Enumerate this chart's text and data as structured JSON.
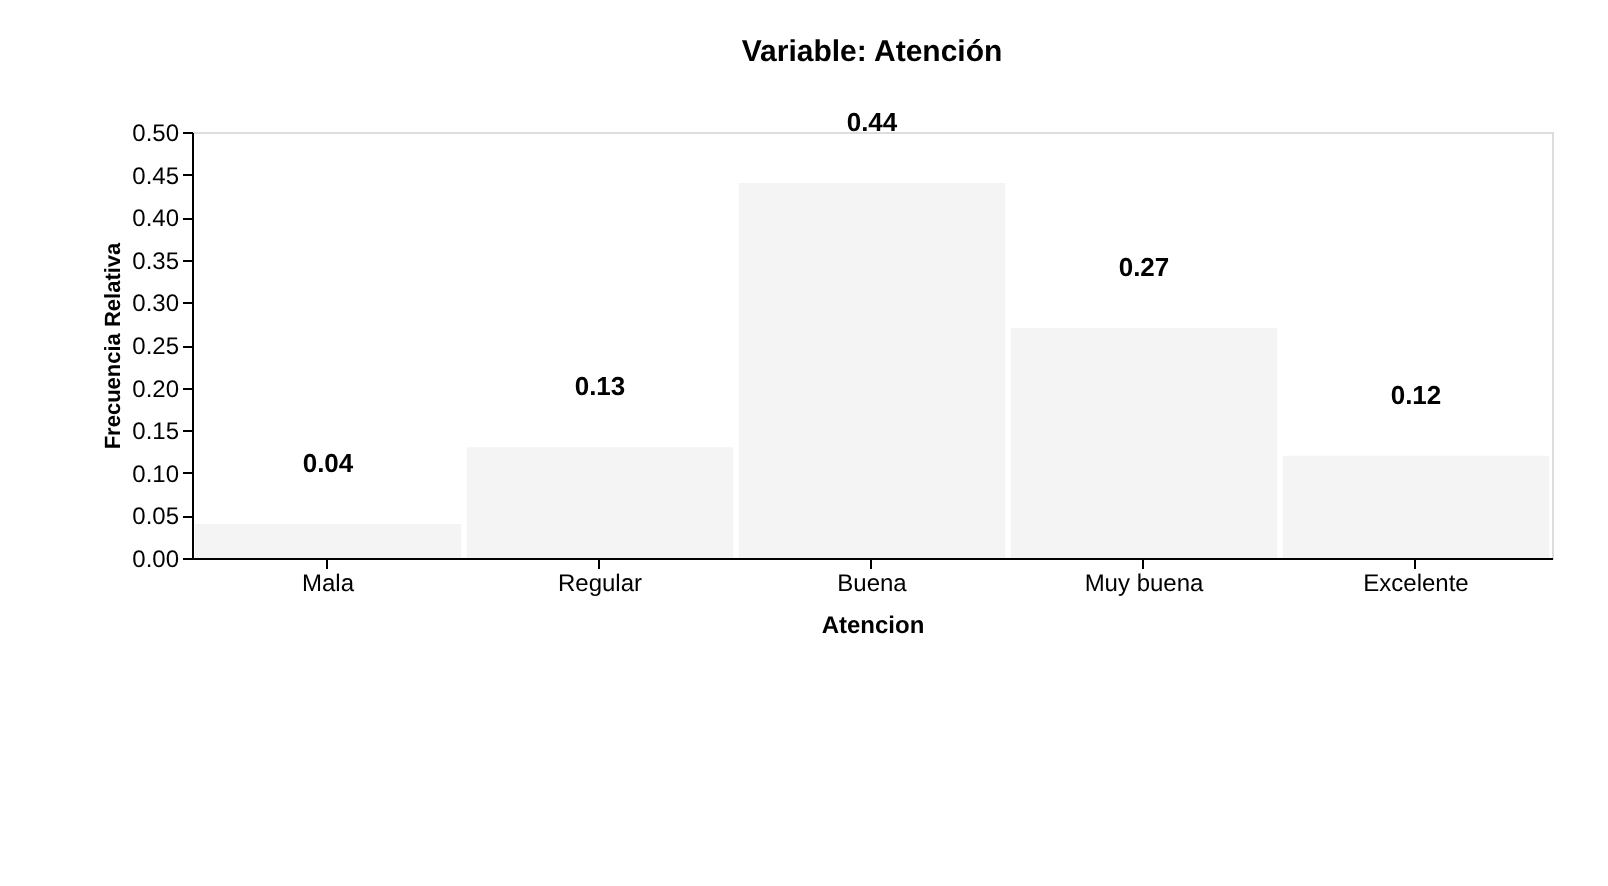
{
  "chart_data": {
    "type": "bar",
    "title": "Variable: Atención",
    "xlabel": "Atencion",
    "ylabel": "Frecuencia Relativa",
    "categories": [
      "Mala",
      "Regular",
      "Buena",
      "Muy buena",
      "Excelente"
    ],
    "values": [
      0.04,
      0.13,
      0.44,
      0.27,
      0.12
    ],
    "color": "#f4f4f4",
    "ylim": [
      0,
      0.5
    ],
    "yticks": [
      {
        "value": 0,
        "label": "0.00"
      },
      {
        "value": 0.05,
        "label": "0.05"
      },
      {
        "value": 0.1,
        "label": "0.10"
      },
      {
        "value": 0.15,
        "label": "0.15"
      },
      {
        "value": 0.2,
        "label": "0.20"
      },
      {
        "value": 0.25,
        "label": "0.25"
      },
      {
        "value": 0.3,
        "label": "0.30"
      },
      {
        "value": 0.35,
        "label": "0.35"
      },
      {
        "value": 0.4,
        "label": "0.40"
      },
      {
        "value": 0.45,
        "label": "0.45"
      },
      {
        "value": 0.5,
        "label": "0.50"
      }
    ],
    "data_labels": true,
    "grid": false
  }
}
